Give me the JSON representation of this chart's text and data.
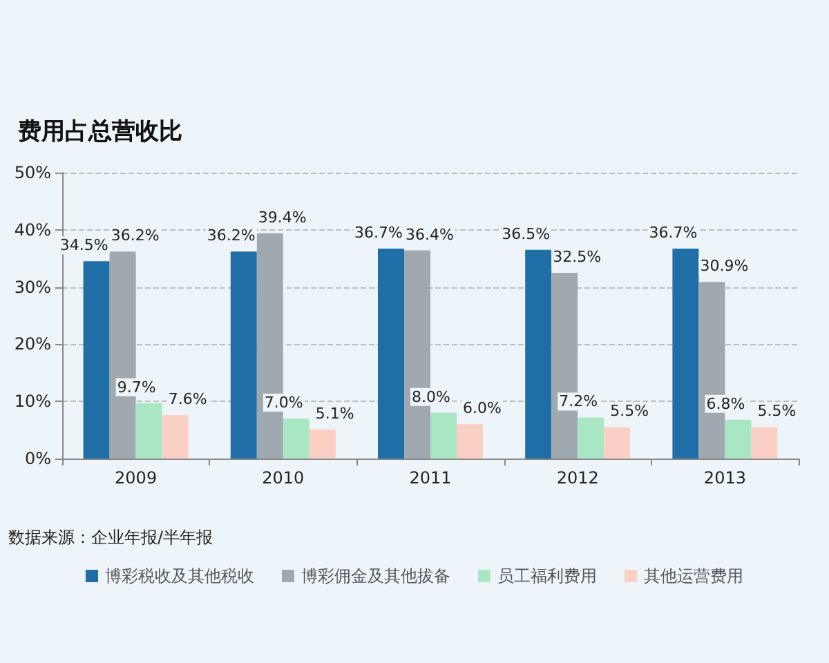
{
  "chart_data": {
    "type": "bar",
    "title": "费用占总营收比",
    "categories": [
      "2009",
      "2010",
      "2011",
      "2012",
      "2013"
    ],
    "series": [
      {
        "name": "博彩税收及其他税收",
        "color": "#1f6ea5",
        "values": [
          34.5,
          36.2,
          36.7,
          36.5,
          36.7
        ],
        "value_labels": [
          "34.5%",
          "36.2%",
          "36.7%",
          "36.5%",
          "36.7%"
        ]
      },
      {
        "name": "博彩佣金及其他拔备",
        "color": "#a0a8b0",
        "values": [
          36.2,
          39.4,
          36.4,
          32.5,
          30.9
        ],
        "value_labels": [
          "36.2%",
          "39.4%",
          "36.4%",
          "32.5%",
          "30.9%"
        ]
      },
      {
        "name": "员工福利费用",
        "color": "#a8e6c4",
        "values": [
          9.7,
          7.0,
          8.0,
          7.2,
          6.8
        ],
        "value_labels": [
          "9.7%",
          "7.0%",
          "8.0%",
          "7.2%",
          "6.8%"
        ]
      },
      {
        "name": "其他运营费用",
        "color": "#fbd0c4",
        "values": [
          7.6,
          5.1,
          6.0,
          5.5,
          5.5
        ],
        "value_labels": [
          "7.6%",
          "5.1%",
          "6.0%",
          "5.5%",
          "5.5%"
        ]
      }
    ],
    "ylim": [
      0,
      50
    ],
    "yticks": [
      {
        "value": 0,
        "label": "0%"
      },
      {
        "value": 10,
        "label": "10%"
      },
      {
        "value": 20,
        "label": "20%"
      },
      {
        "value": 30,
        "label": "30%"
      },
      {
        "value": 40,
        "label": "40%"
      },
      {
        "value": 50,
        "label": "50%"
      }
    ],
    "grid": "y",
    "legend": "bottom",
    "annotations": [
      "数据来源：企业年报/半年报"
    ]
  }
}
